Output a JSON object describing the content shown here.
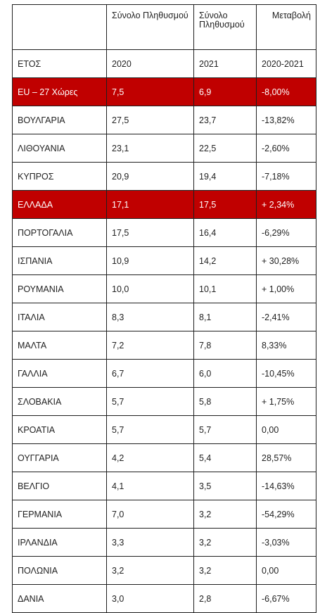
{
  "table": {
    "headers": [
      "",
      "Σύνολο Πληθυσμού",
      "Σύνολο Πληθυσμού",
      "Μεταβολή"
    ],
    "rows": [
      {
        "country": "ΕΤΟΣ",
        "v2020": "2020",
        "v2021": "2021",
        "change": "2020-2021",
        "highlight": false
      },
      {
        "country": "EU – 27 Χώρες",
        "v2020": "7,5",
        "v2021": "6,9",
        "change": "-8,00%",
        "highlight": true
      },
      {
        "country": "ΒΟΥΛΓΑΡΙΑ",
        "v2020": "27,5",
        "v2021": "23,7",
        "change": "-13,82%",
        "highlight": false
      },
      {
        "country": "ΛΙΘΟΥΑΝΙΑ",
        "v2020": "23,1",
        "v2021": "22,5",
        "change": "-2,60%",
        "highlight": false
      },
      {
        "country": "ΚΥΠΡΟΣ",
        "v2020": "20,9",
        "v2021": "19,4",
        "change": "-7,18%",
        "highlight": false
      },
      {
        "country": "ΕΛΛΑΔΑ",
        "v2020": "17,1",
        "v2021": "17,5",
        "change": "+ 2,34%",
        "highlight": true
      },
      {
        "country": "ΠΟΡΤΟΓΑΛΙΑ",
        "v2020": "17,5",
        "v2021": "16,4",
        "change": "-6,29%",
        "highlight": false
      },
      {
        "country": "ΙΣΠΑΝΙΑ",
        "v2020": "10,9",
        "v2021": "14,2",
        "change": "+ 30,28%",
        "highlight": false
      },
      {
        "country": "ΡΟΥΜΑΝΙΑ",
        "v2020": "10,0",
        "v2021": "10,1",
        "change": "+ 1,00%",
        "highlight": false
      },
      {
        "country": "ΙΤΑΛΙΑ",
        "v2020": "8,3",
        "v2021": "8,1",
        "change": "-2,41%",
        "highlight": false
      },
      {
        "country": "ΜΑΛΤΑ",
        "v2020": "7,2",
        "v2021": "7,8",
        "change": "8,33%",
        "highlight": false
      },
      {
        "country": "ΓΑΛΛΙΑ",
        "v2020": "6,7",
        "v2021": "6,0",
        "change": "-10,45%",
        "highlight": false
      },
      {
        "country": "ΣΛΟΒΑΚΙΑ",
        "v2020": "5,7",
        "v2021": "5,8",
        "change": "+ 1,75%",
        "highlight": false
      },
      {
        "country": "ΚΡΟΑΤΙΑ",
        "v2020": "5,7",
        "v2021": "5,7",
        "change": "0,00",
        "highlight": false
      },
      {
        "country": "ΟΥΓΓΑΡΙΑ",
        "v2020": "4,2",
        "v2021": "5,4",
        "change": "28,57%",
        "highlight": false
      },
      {
        "country": "ΒΕΛΓΙΟ",
        "v2020": "4,1",
        "v2021": "3,5",
        "change": "-14,63%",
        "highlight": false
      },
      {
        "country": "ΓΕΡΜΑΝΙΑ",
        "v2020": "7,0",
        "v2021": "3,2",
        "change": "-54,29%",
        "highlight": false
      },
      {
        "country": "ΙΡΛΑΝΔΙΑ",
        "v2020": "3,3",
        "v2021": "3,2",
        "change": "-3,03%",
        "highlight": false
      },
      {
        "country": "ΠΟΛΩΝΙΑ",
        "v2020": "3,2",
        "v2021": "3,2",
        "change": "0,00",
        "highlight": false
      },
      {
        "country": "ΔΑΝΙΑ",
        "v2020": "3,0",
        "v2021": "2,8",
        "change": "-6,67%",
        "highlight": false
      }
    ]
  }
}
